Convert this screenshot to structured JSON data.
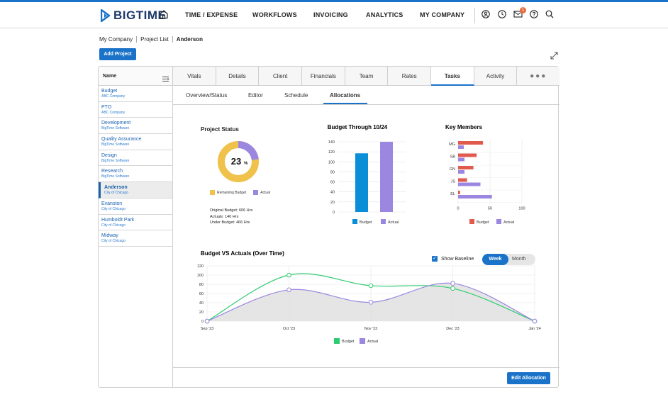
{
  "app": {
    "logo_text": "BIGTIME",
    "nav": [
      "TIME / EXPENSE",
      "WORKFLOWS",
      "INVOICING",
      "ANALYTICS",
      "MY COMPANY"
    ],
    "notification_count": "1",
    "accent_color": "#1a73c8"
  },
  "breadcrumb": [
    "My Company",
    "Project List",
    "Anderson"
  ],
  "add_project_label": "Add Project",
  "sidebar": {
    "header": "Name",
    "items": [
      {
        "name": "Budget",
        "sub": "ABC Company"
      },
      {
        "name": "PTO",
        "sub": "ABC Company"
      },
      {
        "name": "Development",
        "sub": "BigTime Software"
      },
      {
        "name": "Quality Assurance",
        "sub": "BigTime Software"
      },
      {
        "name": "Design",
        "sub": "BigTime Software"
      },
      {
        "name": "Research",
        "sub": "BigTime Software"
      },
      {
        "name": "Anderson",
        "sub": "City of Chicago"
      },
      {
        "name": "Evanston",
        "sub": "City of Chicago"
      },
      {
        "name": "Humboldt Park",
        "sub": "City of Chicago"
      },
      {
        "name": "Midway",
        "sub": "City of Chicago"
      }
    ]
  },
  "tabs": [
    "Vitals",
    "Details",
    "Client",
    "Financials",
    "Team",
    "Rates",
    "Tasks",
    "Activity",
    "●●●"
  ],
  "subtabs": [
    "Overview/Status",
    "Editor",
    "Schedule",
    "Allocations"
  ],
  "project_status": {
    "title": "Project Status",
    "percent": "23",
    "percent_sign": "%",
    "legend_remaining": "Remaining Budget",
    "legend_actual": "Actual",
    "original_budget": "Original Budget: 606 Hrs",
    "actuals": "Actuals: 140 Hrs",
    "under_budget": "Under Budget: 466 Hrs",
    "budget_color": "#f0c24b",
    "actual_color": "#9b87e0"
  },
  "budget_vs_actual": {
    "legend_budget": "Budget",
    "legend_actual": "Actual",
    "show_baseline": "Show Baseline",
    "toggle_week": "Week",
    "toggle_month": "Month"
  },
  "edit_allocation_label": "Edit Allocation",
  "chart_data": [
    {
      "type": "pie",
      "title": "Project Status",
      "categories": [
        "Remaining Budget",
        "Actual"
      ],
      "values": [
        77,
        23
      ],
      "colors": [
        "#f0c24b",
        "#9b87e0"
      ]
    },
    {
      "type": "bar",
      "title": "Budget Through 10/24",
      "categories": [
        ""
      ],
      "series": [
        {
          "name": "Budget",
          "values": [
            117
          ],
          "color": "#0b8ed8"
        },
        {
          "name": "Actual",
          "values": [
            140
          ],
          "color": "#9b87e0"
        }
      ],
      "ylim": [
        0,
        140
      ],
      "yticks": [
        0,
        20,
        40,
        60,
        80,
        100,
        120,
        140
      ],
      "legend": "bottom"
    },
    {
      "type": "bar",
      "orientation": "horizontal",
      "title": "Key Members",
      "categories": [
        "MG",
        "SB",
        "GN",
        "JS",
        "EL"
      ],
      "series": [
        {
          "name": "Budget",
          "values": [
            39,
            29,
            24,
            14,
            3
          ],
          "color": "#e05a4e"
        },
        {
          "name": "Actual",
          "values": [
            9,
            10,
            10,
            35,
            53
          ],
          "color": "#9b87e0"
        }
      ],
      "xlim": [
        0,
        100
      ],
      "xticks": [
        0,
        50,
        100
      ],
      "legend": "bottom"
    },
    {
      "type": "line",
      "title": "Budget VS Actuals (Over Time)",
      "x": [
        "Sep '23",
        "Oct '23",
        "Nov '23",
        "Dec '23",
        "Jan '24"
      ],
      "series": [
        {
          "name": "Budget",
          "values": [
            0,
            100,
            77,
            71,
            0
          ],
          "color": "#2ecc71"
        },
        {
          "name": "Actual",
          "values": [
            0,
            68,
            41,
            82,
            0
          ],
          "color": "#9b87e0"
        }
      ],
      "ylim": [
        0,
        120
      ],
      "yticks": [
        0,
        20,
        40,
        60,
        80,
        100,
        120
      ],
      "grid": true,
      "legend": "bottom"
    }
  ]
}
